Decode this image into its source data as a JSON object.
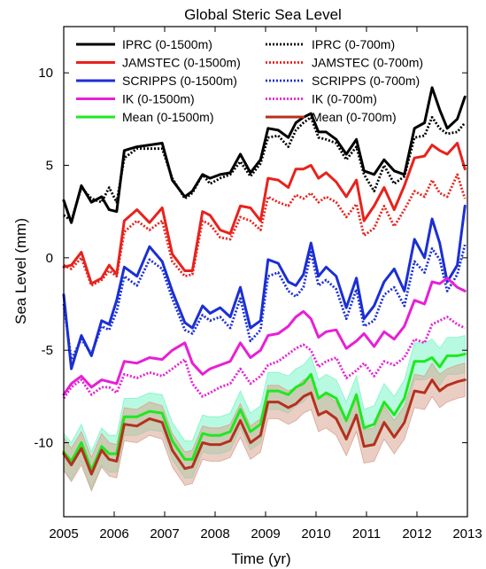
{
  "chart_data": {
    "type": "line",
    "title": "Global Steric Sea Level",
    "xlabel": "Time (yr)",
    "ylabel": "Sea Level (mm)",
    "xlim": [
      2005,
      2013
    ],
    "ylim": [
      -14,
      12.5
    ],
    "xticks": [
      2005,
      2006,
      2007,
      2008,
      2009,
      2010,
      2011,
      2012,
      2013
    ],
    "xtick_labels": [
      "2005",
      "2006",
      "2007",
      "2008",
      "2009",
      "2010",
      "2011",
      "2012",
      "2013"
    ],
    "yticks": [
      -10,
      -5,
      0,
      5,
      10
    ],
    "ytick_labels": [
      "-10",
      "-5",
      "0",
      "5",
      "10"
    ],
    "grid": false,
    "legend_position": "top",
    "series": [
      {
        "name": "IPRC (0-1500m)",
        "color": "#000000",
        "style": "solid",
        "x": [
          2005.0,
          2005.15,
          2005.35,
          2005.55,
          2005.75,
          2005.9,
          2006.05,
          2006.2,
          2006.45,
          2006.7,
          2006.95,
          2007.15,
          2007.4,
          2007.55,
          2007.75,
          2007.9,
          2008.1,
          2008.3,
          2008.5,
          2008.7,
          2008.9,
          2009.05,
          2009.25,
          2009.45,
          2009.6,
          2009.75,
          2009.9,
          2010.05,
          2010.2,
          2010.4,
          2010.6,
          2010.8,
          2010.95,
          2011.15,
          2011.35,
          2011.55,
          2011.75,
          2011.95,
          2012.15,
          2012.3,
          2012.45,
          2012.6,
          2012.8,
          2012.95
        ],
        "y": [
          3.1,
          1.9,
          3.9,
          3.0,
          3.3,
          2.6,
          2.5,
          5.8,
          6.0,
          6.1,
          6.2,
          4.2,
          3.3,
          3.6,
          4.5,
          4.3,
          4.5,
          4.6,
          5.6,
          4.6,
          5.3,
          7.0,
          6.9,
          6.5,
          7.3,
          7.6,
          7.8,
          6.8,
          6.8,
          6.4,
          5.6,
          6.4,
          4.7,
          4.5,
          5.3,
          4.7,
          4.5,
          7.0,
          7.3,
          9.2,
          8.0,
          7.0,
          7.5,
          8.7
        ]
      },
      {
        "name": "IPRC (0-700m)",
        "color": "#000000",
        "style": "dotted",
        "x": [
          2005.0,
          2005.15,
          2005.35,
          2005.55,
          2005.75,
          2005.9,
          2006.05,
          2006.2,
          2006.45,
          2006.7,
          2006.95,
          2007.15,
          2007.4,
          2007.55,
          2007.75,
          2007.9,
          2008.1,
          2008.3,
          2008.5,
          2008.7,
          2008.9,
          2009.05,
          2009.25,
          2009.45,
          2009.6,
          2009.75,
          2009.9,
          2010.05,
          2010.2,
          2010.4,
          2010.6,
          2010.8,
          2010.95,
          2011.15,
          2011.35,
          2011.55,
          2011.75,
          2011.95,
          2012.15,
          2012.3,
          2012.45,
          2012.6,
          2012.8,
          2012.95
        ],
        "y": [
          2.3,
          2.0,
          3.8,
          3.2,
          3.0,
          3.8,
          3.0,
          5.4,
          5.9,
          5.9,
          5.9,
          4.3,
          3.2,
          3.5,
          4.5,
          4.0,
          4.3,
          4.5,
          5.2,
          4.4,
          5.1,
          6.5,
          6.6,
          6.0,
          6.9,
          7.3,
          7.6,
          6.5,
          6.4,
          6.2,
          5.3,
          6.0,
          4.5,
          3.6,
          5.0,
          4.0,
          4.4,
          6.5,
          6.6,
          7.6,
          7.0,
          6.7,
          6.8,
          7.3
        ]
      },
      {
        "name": "JAMSTEC (0-1500m)",
        "color": "#e8221c",
        "style": "solid",
        "x": [
          2005.0,
          2005.15,
          2005.35,
          2005.55,
          2005.75,
          2005.9,
          2006.05,
          2006.2,
          2006.45,
          2006.7,
          2006.95,
          2007.15,
          2007.4,
          2007.55,
          2007.75,
          2007.9,
          2008.1,
          2008.3,
          2008.5,
          2008.7,
          2008.9,
          2009.05,
          2009.25,
          2009.45,
          2009.6,
          2009.75,
          2009.9,
          2010.05,
          2010.2,
          2010.4,
          2010.6,
          2010.8,
          2010.95,
          2011.15,
          2011.35,
          2011.55,
          2011.75,
          2011.95,
          2012.15,
          2012.3,
          2012.45,
          2012.6,
          2012.8,
          2012.95
        ],
        "y": [
          -0.5,
          -0.4,
          0.3,
          -1.4,
          -1.1,
          -0.4,
          -0.9,
          2.0,
          2.6,
          1.9,
          2.7,
          0.2,
          -0.7,
          -0.7,
          2.5,
          2.3,
          1.5,
          1.3,
          2.8,
          2.7,
          2.0,
          4.3,
          4.2,
          3.8,
          4.8,
          4.8,
          5.0,
          4.3,
          4.6,
          4.1,
          3.3,
          4.2,
          2.0,
          2.8,
          3.8,
          2.6,
          3.9,
          5.4,
          5.5,
          6.1,
          5.8,
          5.6,
          6.2,
          4.8
        ]
      },
      {
        "name": "JAMSTEC (0-700m)",
        "color": "#e8221c",
        "style": "dotted",
        "x": [
          2005.0,
          2005.15,
          2005.35,
          2005.55,
          2005.75,
          2005.9,
          2006.05,
          2006.2,
          2006.45,
          2006.7,
          2006.95,
          2007.15,
          2007.4,
          2007.55,
          2007.75,
          2007.9,
          2008.1,
          2008.3,
          2008.5,
          2008.7,
          2008.9,
          2009.05,
          2009.25,
          2009.45,
          2009.6,
          2009.75,
          2009.9,
          2010.05,
          2010.2,
          2010.4,
          2010.6,
          2010.8,
          2010.95,
          2011.15,
          2011.35,
          2011.55,
          2011.75,
          2011.95,
          2012.15,
          2012.3,
          2012.45,
          2012.6,
          2012.8,
          2012.95
        ],
        "y": [
          -0.4,
          -0.6,
          0.0,
          -1.5,
          -1.2,
          -0.7,
          -1.0,
          1.4,
          2.0,
          1.5,
          2.0,
          -0.2,
          -1.0,
          -0.9,
          2.0,
          1.8,
          1.1,
          1.0,
          2.2,
          2.0,
          1.5,
          3.3,
          3.0,
          2.8,
          3.4,
          3.2,
          3.5,
          3.0,
          3.3,
          3.0,
          2.2,
          2.9,
          1.2,
          1.6,
          2.8,
          1.7,
          2.6,
          3.6,
          3.3,
          4.2,
          3.5,
          3.3,
          4.5,
          3.2
        ]
      },
      {
        "name": "SCRIPPS (0-1500m)",
        "color": "#1b2fd4",
        "style": "solid",
        "x": [
          2005.0,
          2005.15,
          2005.35,
          2005.55,
          2005.75,
          2005.9,
          2006.05,
          2006.2,
          2006.45,
          2006.7,
          2006.95,
          2007.15,
          2007.4,
          2007.55,
          2007.75,
          2007.9,
          2008.1,
          2008.3,
          2008.5,
          2008.7,
          2008.9,
          2009.05,
          2009.25,
          2009.45,
          2009.6,
          2009.75,
          2009.9,
          2010.05,
          2010.2,
          2010.4,
          2010.6,
          2010.8,
          2010.95,
          2011.15,
          2011.35,
          2011.55,
          2011.75,
          2011.95,
          2012.15,
          2012.3,
          2012.45,
          2012.6,
          2012.8,
          2012.95
        ],
        "y": [
          -2.0,
          -6.0,
          -4.2,
          -5.3,
          -3.4,
          -3.6,
          -2.3,
          -0.5,
          -1.0,
          0.6,
          -0.2,
          -1.8,
          -3.5,
          -3.8,
          -2.6,
          -3.0,
          -2.7,
          -3.2,
          -1.6,
          -3.8,
          -3.4,
          -0.1,
          -0.3,
          -1.3,
          -1.5,
          -0.9,
          0.8,
          -1.0,
          -0.5,
          -1.0,
          -2.7,
          -1.1,
          -3.3,
          -2.6,
          -1.3,
          -0.6,
          -1.8,
          1.0,
          0.0,
          2.1,
          0.8,
          -1.3,
          -0.4,
          2.8
        ]
      },
      {
        "name": "SCRIPPS (0-700m)",
        "color": "#1b2fd4",
        "style": "dotted",
        "x": [
          2005.0,
          2005.15,
          2005.35,
          2005.55,
          2005.75,
          2005.9,
          2006.05,
          2006.2,
          2006.45,
          2006.7,
          2006.95,
          2007.15,
          2007.4,
          2007.55,
          2007.75,
          2007.9,
          2008.1,
          2008.3,
          2008.5,
          2008.7,
          2008.9,
          2009.05,
          2009.25,
          2009.45,
          2009.6,
          2009.75,
          2009.9,
          2010.05,
          2010.2,
          2010.4,
          2010.6,
          2010.8,
          2010.95,
          2011.15,
          2011.35,
          2011.55,
          2011.75,
          2011.95,
          2012.15,
          2012.3,
          2012.45,
          2012.6,
          2012.8,
          2012.95
        ],
        "y": [
          -2.5,
          -5.5,
          -4.4,
          -5.2,
          -3.7,
          -3.9,
          -2.9,
          -1.0,
          -1.5,
          -0.1,
          -0.6,
          -2.2,
          -3.9,
          -4.1,
          -3.1,
          -3.4,
          -3.2,
          -3.8,
          -2.2,
          -4.5,
          -3.9,
          -1.0,
          -0.8,
          -1.8,
          -2.1,
          -1.6,
          0.3,
          -1.5,
          -1.2,
          -1.7,
          -3.3,
          -1.7,
          -3.7,
          -3.4,
          -2.0,
          -1.6,
          -2.6,
          -0.2,
          -0.8,
          0.5,
          -0.1,
          -1.8,
          -0.9,
          0.7
        ]
      },
      {
        "name": "IK (0-1500m)",
        "color": "#e71fd6",
        "style": "solid",
        "x": [
          2005.0,
          2005.15,
          2005.35,
          2005.55,
          2005.75,
          2005.9,
          2006.05,
          2006.2,
          2006.45,
          2006.7,
          2006.95,
          2007.15,
          2007.4,
          2007.55,
          2007.75,
          2007.9,
          2008.1,
          2008.3,
          2008.5,
          2008.7,
          2008.9,
          2009.05,
          2009.25,
          2009.45,
          2009.6,
          2009.75,
          2009.9,
          2010.05,
          2010.2,
          2010.4,
          2010.6,
          2010.8,
          2010.95,
          2011.15,
          2011.35,
          2011.55,
          2011.75,
          2011.95,
          2012.15,
          2012.3,
          2012.45,
          2012.6,
          2012.8,
          2012.95
        ],
        "y": [
          -7.4,
          -6.8,
          -6.4,
          -7.0,
          -6.6,
          -6.7,
          -6.8,
          -5.6,
          -5.7,
          -5.4,
          -5.5,
          -5.0,
          -4.6,
          -5.7,
          -6.3,
          -6.0,
          -5.8,
          -5.6,
          -4.6,
          -5.4,
          -5.0,
          -4.2,
          -4.1,
          -3.7,
          -3.2,
          -2.9,
          -3.3,
          -4.3,
          -4.0,
          -3.9,
          -4.9,
          -4.5,
          -4.1,
          -4.8,
          -4.0,
          -4.4,
          -3.7,
          -2.3,
          -2.5,
          -1.3,
          -1.4,
          -1.1,
          -1.6,
          -1.8
        ]
      },
      {
        "name": "IK (0-700m)",
        "color": "#e71fd6",
        "style": "dotted",
        "x": [
          2005.0,
          2005.15,
          2005.35,
          2005.55,
          2005.75,
          2005.9,
          2006.05,
          2006.2,
          2006.45,
          2006.7,
          2006.95,
          2007.15,
          2007.4,
          2007.55,
          2007.75,
          2007.9,
          2008.1,
          2008.3,
          2008.5,
          2008.7,
          2008.9,
          2009.05,
          2009.25,
          2009.45,
          2009.6,
          2009.75,
          2009.9,
          2010.05,
          2010.2,
          2010.4,
          2010.6,
          2010.8,
          2010.95,
          2011.15,
          2011.35,
          2011.55,
          2011.75,
          2011.95,
          2012.15,
          2012.3,
          2012.45,
          2012.6,
          2012.8,
          2012.95
        ],
        "y": [
          -7.6,
          -7.0,
          -6.6,
          -7.4,
          -7.0,
          -7.0,
          -7.3,
          -6.3,
          -6.5,
          -6.2,
          -6.4,
          -6.0,
          -5.5,
          -6.8,
          -7.5,
          -7.3,
          -7.0,
          -6.8,
          -6.0,
          -6.8,
          -6.4,
          -5.8,
          -5.6,
          -5.2,
          -4.9,
          -4.7,
          -5.0,
          -5.9,
          -5.6,
          -5.4,
          -6.5,
          -6.1,
          -5.7,
          -6.4,
          -5.6,
          -5.8,
          -5.4,
          -4.4,
          -4.6,
          -3.6,
          -3.4,
          -3.2,
          -3.6,
          -3.8
        ]
      },
      {
        "name": "Mean (0-1500m)",
        "color": "#1fe81f",
        "style": "solid",
        "x": [
          2005.0,
          2005.15,
          2005.35,
          2005.55,
          2005.75,
          2005.9,
          2006.05,
          2006.2,
          2006.45,
          2006.7,
          2006.95,
          2007.15,
          2007.4,
          2007.55,
          2007.75,
          2007.9,
          2008.1,
          2008.3,
          2008.5,
          2008.7,
          2008.9,
          2009.05,
          2009.25,
          2009.45,
          2009.6,
          2009.75,
          2009.9,
          2010.05,
          2010.2,
          2010.4,
          2010.6,
          2010.8,
          2010.95,
          2011.15,
          2011.35,
          2011.55,
          2011.75,
          2011.95,
          2012.15,
          2012.3,
          2012.45,
          2012.6,
          2012.8,
          2012.95
        ],
        "y": [
          -10.5,
          -11.0,
          -10.0,
          -11.5,
          -10.2,
          -10.6,
          -10.6,
          -8.6,
          -8.6,
          -8.3,
          -8.4,
          -9.9,
          -10.9,
          -10.9,
          -9.5,
          -9.6,
          -9.6,
          -9.4,
          -8.2,
          -9.4,
          -9.0,
          -7.2,
          -7.2,
          -7.4,
          -7.0,
          -6.8,
          -6.3,
          -7.6,
          -7.3,
          -7.6,
          -8.8,
          -7.4,
          -9.2,
          -9.0,
          -7.8,
          -8.5,
          -7.6,
          -5.6,
          -5.6,
          -5.4,
          -5.9,
          -5.3,
          -5.3,
          -5.2
        ]
      },
      {
        "name": "Mean (0-700m)",
        "color": "#b5301e",
        "style": "solid",
        "x": [
          2005.0,
          2005.15,
          2005.35,
          2005.55,
          2005.75,
          2005.9,
          2006.05,
          2006.2,
          2006.45,
          2006.7,
          2006.95,
          2007.15,
          2007.4,
          2007.55,
          2007.75,
          2007.9,
          2008.1,
          2008.3,
          2008.5,
          2008.7,
          2008.9,
          2009.05,
          2009.25,
          2009.45,
          2009.6,
          2009.75,
          2009.9,
          2010.05,
          2010.2,
          2010.4,
          2010.6,
          2010.8,
          2010.95,
          2011.15,
          2011.35,
          2011.55,
          2011.75,
          2011.95,
          2012.15,
          2012.3,
          2012.45,
          2012.6,
          2012.8,
          2012.95
        ],
        "y": [
          -10.6,
          -11.2,
          -10.3,
          -11.7,
          -10.4,
          -10.9,
          -11.0,
          -9.0,
          -9.1,
          -8.7,
          -8.9,
          -10.4,
          -11.4,
          -11.3,
          -10.0,
          -10.1,
          -10.1,
          -9.9,
          -8.8,
          -10.0,
          -9.6,
          -7.8,
          -7.8,
          -8.1,
          -7.9,
          -7.5,
          -7.3,
          -8.5,
          -8.3,
          -8.7,
          -9.8,
          -8.5,
          -10.2,
          -10.1,
          -8.9,
          -9.7,
          -8.9,
          -7.2,
          -7.3,
          -6.6,
          -7.2,
          -6.9,
          -6.7,
          -6.6
        ]
      }
    ],
    "bands": [
      {
        "series": "Mean (0-1500m)",
        "color": "#7ef5c8",
        "halfwidth": 1.0
      },
      {
        "series": "Mean (0-700m)",
        "color": "#d9a593",
        "halfwidth": 0.9
      }
    ]
  }
}
